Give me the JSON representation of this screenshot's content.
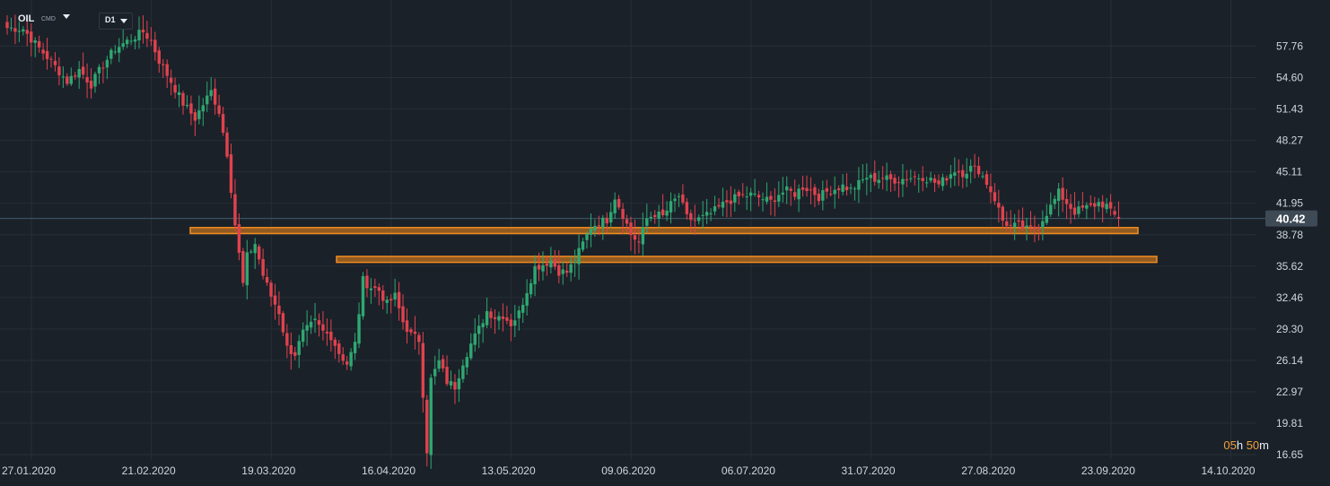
{
  "instrument": {
    "symbol": "OIL",
    "type": "CMD",
    "timeframe": "D1"
  },
  "countdown": {
    "hours_value": "05",
    "hours_unit": "h",
    "minutes_value": "50",
    "minutes_unit": "m"
  },
  "colors": {
    "background": "#1b2129",
    "grid": "#262e38",
    "bull": "#2ea872",
    "bear": "#e0424e",
    "price_line": "#3f5b6b",
    "price_tag": "#3e4a56",
    "zone": "#f28c1e",
    "axis_text": "#cfd6de"
  },
  "chart_data": {
    "type": "candlestick",
    "y_ticks": [
      "57.76",
      "54.60",
      "51.43",
      "48.27",
      "45.11",
      "41.95",
      "38.78",
      "35.62",
      "32.46",
      "29.30",
      "26.14",
      "22.97",
      "19.81",
      "16.65"
    ],
    "x_ticks": [
      "27.01.2020",
      "21.02.2020",
      "19.03.2020",
      "16.04.2020",
      "13.05.2020",
      "09.06.2020",
      "06.07.2020",
      "31.07.2020",
      "27.08.2020",
      "23.09.2020",
      "14.10.2020"
    ],
    "ylim": [
      16.2,
      61.5
    ],
    "last_price": "40.42",
    "zones": [
      {
        "low": 38.9,
        "high": 39.5
      },
      {
        "low": 36.0,
        "high": 36.6
      }
    ],
    "waypoints": [
      [
        0,
        59.6
      ],
      [
        4,
        59.5
      ],
      [
        7,
        58.0
      ],
      [
        11,
        56.2
      ],
      [
        15,
        54.2
      ],
      [
        18,
        55.4
      ],
      [
        21,
        53.9
      ],
      [
        24,
        55.9
      ],
      [
        27,
        57.5
      ],
      [
        31,
        58.5
      ],
      [
        34,
        59.2
      ],
      [
        36,
        58.3
      ],
      [
        38,
        56.3
      ],
      [
        41,
        54.2
      ],
      [
        44,
        52.0
      ],
      [
        47,
        50.5
      ],
      [
        49,
        51.9
      ],
      [
        51,
        53.2
      ],
      [
        53,
        51.2
      ],
      [
        55,
        47.0
      ],
      [
        57,
        39.8
      ],
      [
        59,
        33.8
      ],
      [
        60,
        36.6
      ],
      [
        62,
        37.9
      ],
      [
        64,
        34.7
      ],
      [
        66,
        32.6
      ],
      [
        68,
        31.0
      ],
      [
        70,
        27.4
      ],
      [
        72,
        26.8
      ],
      [
        74,
        28.9
      ],
      [
        77,
        30.0
      ],
      [
        79,
        29.0
      ],
      [
        81,
        28.6
      ],
      [
        83,
        26.9
      ],
      [
        85,
        25.8
      ],
      [
        87,
        27.8
      ],
      [
        89,
        34.2
      ],
      [
        91,
        33.5
      ],
      [
        93,
        33.2
      ],
      [
        95,
        31.8
      ],
      [
        97,
        32.6
      ],
      [
        99,
        30.0
      ],
      [
        101,
        28.7
      ],
      [
        103,
        28.2
      ],
      [
        104,
        22.8
      ],
      [
        105,
        17.1
      ],
      [
        106,
        24.2
      ],
      [
        108,
        26.0
      ],
      [
        110,
        24.0
      ],
      [
        112,
        23.5
      ],
      [
        114,
        26.0
      ],
      [
        116,
        27.8
      ],
      [
        118,
        29.3
      ],
      [
        120,
        31.1
      ],
      [
        122,
        30.5
      ],
      [
        124,
        30.7
      ],
      [
        126,
        29.8
      ],
      [
        128,
        30.9
      ],
      [
        130,
        33.2
      ],
      [
        132,
        35.5
      ],
      [
        134,
        35.8
      ],
      [
        136,
        36.2
      ],
      [
        138,
        35.1
      ],
      [
        140,
        35.0
      ],
      [
        142,
        36.2
      ],
      [
        144,
        37.9
      ],
      [
        146,
        39.6
      ],
      [
        148,
        40.0
      ],
      [
        150,
        40.3
      ],
      [
        152,
        42.6
      ],
      [
        154,
        40.8
      ],
      [
        156,
        38.8
      ],
      [
        158,
        38.0
      ],
      [
        160,
        40.4
      ],
      [
        162,
        40.9
      ],
      [
        164,
        40.6
      ],
      [
        166,
        41.8
      ],
      [
        168,
        42.7
      ],
      [
        170,
        40.5
      ],
      [
        172,
        40.2
      ],
      [
        174,
        40.5
      ],
      [
        176,
        40.9
      ],
      [
        178,
        41.5
      ],
      [
        180,
        42.1
      ],
      [
        183,
        42.6
      ],
      [
        186,
        42.8
      ],
      [
        189,
        42.4
      ],
      [
        191,
        42.1
      ],
      [
        193,
        42.9
      ],
      [
        195,
        43.2
      ],
      [
        197,
        42.9
      ],
      [
        199,
        43.6
      ],
      [
        201,
        43.3
      ],
      [
        203,
        42.6
      ],
      [
        205,
        43.1
      ],
      [
        207,
        43.4
      ],
      [
        209,
        43.7
      ],
      [
        211,
        43.3
      ],
      [
        213,
        43.9
      ],
      [
        215,
        44.6
      ],
      [
        217,
        44.4
      ],
      [
        219,
        44.5
      ],
      [
        221,
        44.3
      ],
      [
        223,
        44.3
      ],
      [
        225,
        44.5
      ],
      [
        227,
        44.6
      ],
      [
        229,
        44.6
      ],
      [
        231,
        44.3
      ],
      [
        233,
        43.8
      ],
      [
        235,
        44.6
      ],
      [
        237,
        45.3
      ],
      [
        239,
        45.0
      ],
      [
        241,
        45.5
      ],
      [
        243,
        45.3
      ],
      [
        245,
        44.0
      ],
      [
        247,
        42.4
      ],
      [
        249,
        40.2
      ],
      [
        251,
        39.6
      ],
      [
        253,
        39.7
      ],
      [
        255,
        39.3
      ],
      [
        257,
        39.4
      ],
      [
        259,
        40.4
      ],
      [
        261,
        41.6
      ],
      [
        263,
        43.0
      ],
      [
        265,
        42.0
      ],
      [
        267,
        41.1
      ],
      [
        269,
        41.4
      ],
      [
        271,
        41.6
      ],
      [
        273,
        42.0
      ],
      [
        275,
        41.7
      ],
      [
        276,
        41.0
      ],
      [
        278,
        40.4
      ]
    ]
  }
}
